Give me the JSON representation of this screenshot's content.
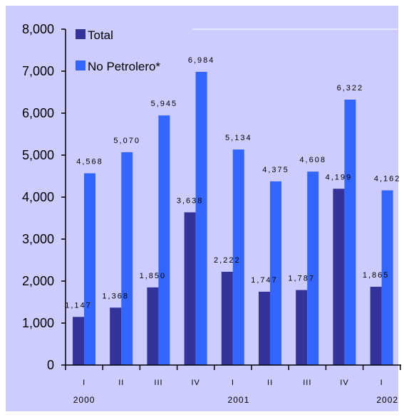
{
  "colors": {
    "background": "#ccccff",
    "total": "#333399",
    "no_petrolero": "#3366ff",
    "axis": "#000000",
    "gridline": "#ffffff"
  },
  "chart_data": {
    "type": "bar",
    "title": "",
    "xlabel": "",
    "ylabel": "",
    "ylim": [
      0,
      8000
    ],
    "yticks": [
      "0",
      "1,000",
      "2,000",
      "3,000",
      "4,000",
      "5,000",
      "6,000",
      "7,000",
      "8,000"
    ],
    "categories": [
      "I",
      "II",
      "III",
      "IV",
      "I",
      "II",
      "III",
      "IV",
      "I"
    ],
    "years": [
      "2000",
      "2001",
      "2002"
    ],
    "legend_position": "top-left",
    "grid": false,
    "series": [
      {
        "name": "Total",
        "values": [
          1147,
          1368,
          1850,
          3638,
          2222,
          1747,
          1787,
          4199,
          1865
        ],
        "labels": [
          "1,147",
          "1,368",
          "1,850",
          "3,638",
          "2,222",
          "1,747",
          "1,787",
          "4,199",
          "1,865"
        ]
      },
      {
        "name": "No Petrolero*",
        "values": [
          4568,
          5070,
          5945,
          6984,
          5134,
          4375,
          4608,
          6322,
          4162
        ],
        "labels": [
          "4,568",
          "5,070",
          "5,945",
          "6,984",
          "5,134",
          "4,375",
          "4,608",
          "6,322",
          "4,162"
        ]
      }
    ]
  }
}
